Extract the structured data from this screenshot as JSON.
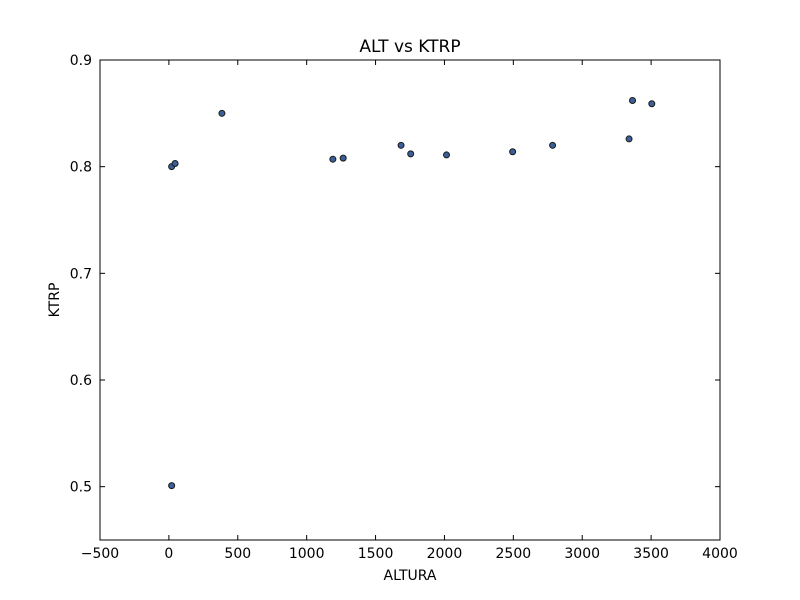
{
  "chart_data": {
    "type": "scatter",
    "title": "ALT vs KTRP",
    "xlabel": "ALTURA",
    "ylabel": "KTRP",
    "xlim": [
      -500,
      4000
    ],
    "ylim": [
      0.45,
      0.9
    ],
    "xticks": [
      -500,
      0,
      500,
      1000,
      1500,
      2000,
      2500,
      3000,
      3500,
      4000
    ],
    "xtick_labels": [
      "−500",
      "0",
      "500",
      "1000",
      "1500",
      "2000",
      "2500",
      "3000",
      "3500",
      "4000"
    ],
    "yticks": [
      0.5,
      0.6,
      0.7,
      0.8,
      0.9
    ],
    "ytick_labels": [
      "0.5",
      "0.6",
      "0.7",
      "0.8",
      "0.9"
    ],
    "grid": false,
    "marker_color": "#3b5f98",
    "marker_edge_color": "#1a1a1a",
    "points": [
      {
        "x": 20,
        "y": 0.8
      },
      {
        "x": 45,
        "y": 0.803
      },
      {
        "x": 20,
        "y": 0.501
      },
      {
        "x": 385,
        "y": 0.85
      },
      {
        "x": 1190,
        "y": 0.807
      },
      {
        "x": 1265,
        "y": 0.808
      },
      {
        "x": 1685,
        "y": 0.82
      },
      {
        "x": 1755,
        "y": 0.812
      },
      {
        "x": 2015,
        "y": 0.811
      },
      {
        "x": 2495,
        "y": 0.814
      },
      {
        "x": 2785,
        "y": 0.82
      },
      {
        "x": 3340,
        "y": 0.826
      },
      {
        "x": 3365,
        "y": 0.862
      },
      {
        "x": 3505,
        "y": 0.859
      }
    ]
  }
}
